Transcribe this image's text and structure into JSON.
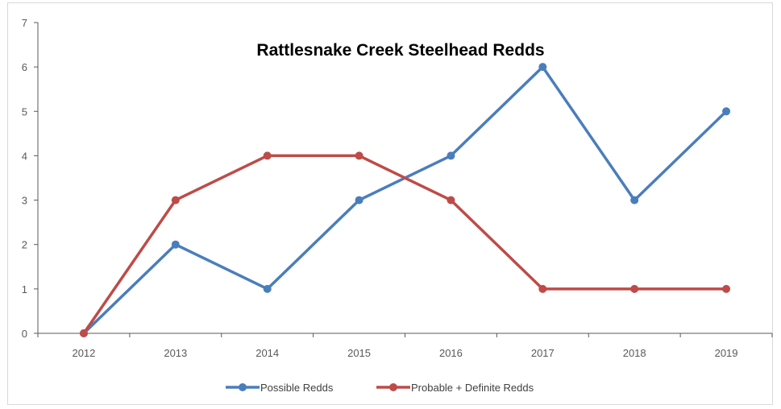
{
  "chart_data": {
    "type": "line",
    "title": "Rattlesnake Creek Steelhead Redds",
    "xlabel": "",
    "ylabel": "",
    "categories": [
      "2012",
      "2013",
      "2014",
      "2015",
      "2016",
      "2017",
      "2018",
      "2019"
    ],
    "ylim": [
      0,
      7
    ],
    "yticks": [
      0,
      1,
      2,
      3,
      4,
      5,
      6,
      7
    ],
    "grid": false,
    "legend_position": "bottom",
    "series": [
      {
        "name": "Possible Redds",
        "color": "#4a7ebb",
        "values": [
          0,
          2,
          1,
          3,
          4,
          6,
          3,
          5
        ]
      },
      {
        "name": "Probable + Definite Redds",
        "color": "#be4b48",
        "values": [
          0,
          3,
          4,
          4,
          3,
          1,
          1,
          1
        ]
      }
    ]
  }
}
